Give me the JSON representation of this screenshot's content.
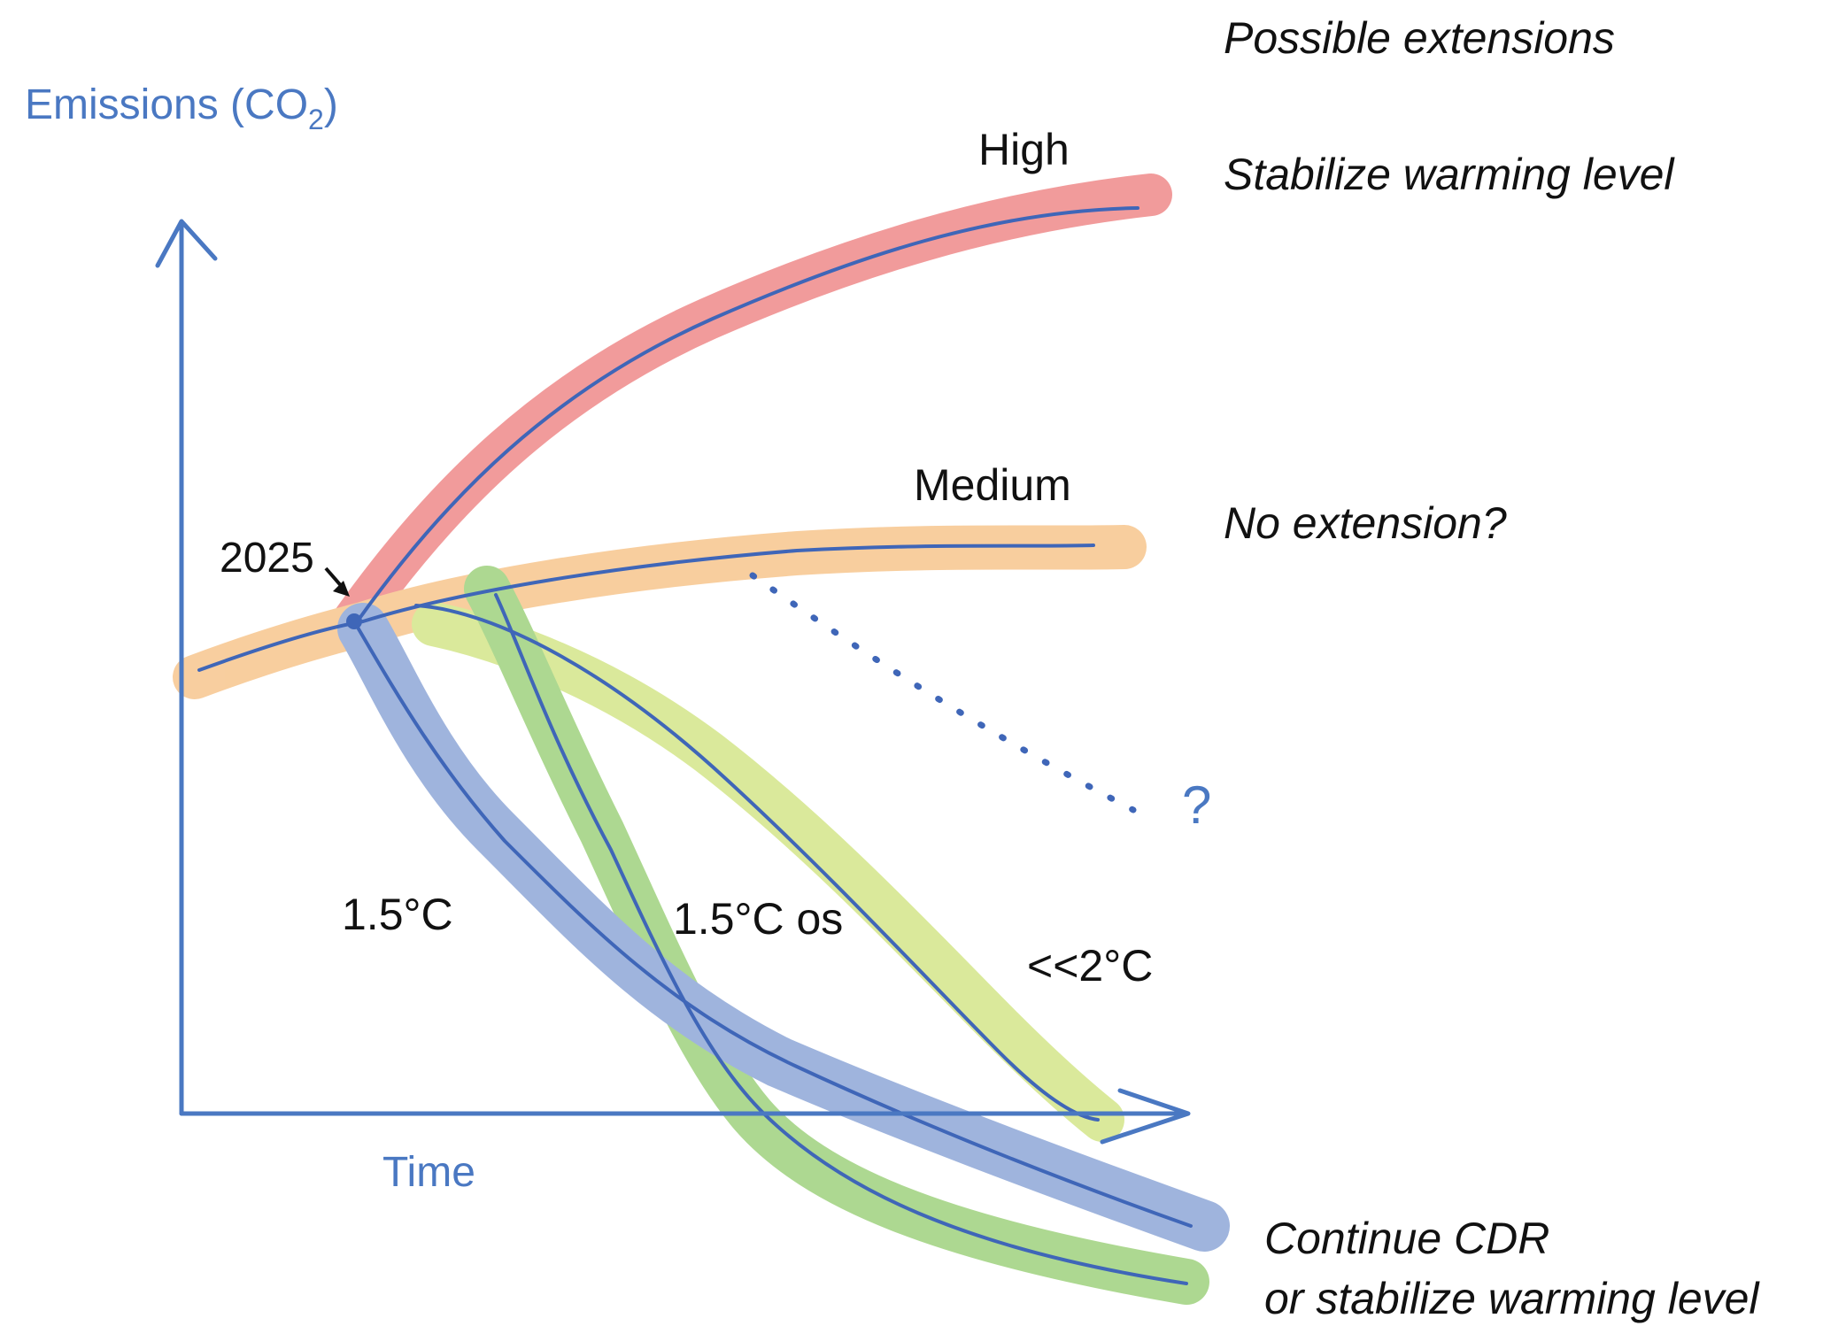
{
  "axes": {
    "y_label_prefix": "Emissions (CO",
    "y_label_subscript": "2",
    "y_label_suffix": ")",
    "x_label": "Time"
  },
  "start_marker": {
    "label": "2025"
  },
  "scenarios": [
    {
      "id": "high",
      "label": "High",
      "color": "#ef8a8a"
    },
    {
      "id": "medium",
      "label": "Medium",
      "color": "#f7c68e"
    },
    {
      "id": "t15",
      "label": "1.5°C",
      "color": "#8fa8d8"
    },
    {
      "id": "t15os",
      "label": "1.5°C os",
      "color": "#9fd27e"
    },
    {
      "id": "lt2",
      "label": "<<2°C",
      "color": "#d4e68a"
    }
  ],
  "medium_branch_question": "?",
  "extensions": {
    "title": "Possible extensions",
    "high": "Stabilize warming level",
    "medium": "No extension?",
    "low_line1": "Continue CDR",
    "low_line2": "or stabilize warming level"
  },
  "colors": {
    "axis": "#4a78c2",
    "pen": "#3f66b8",
    "text": "#111111"
  }
}
